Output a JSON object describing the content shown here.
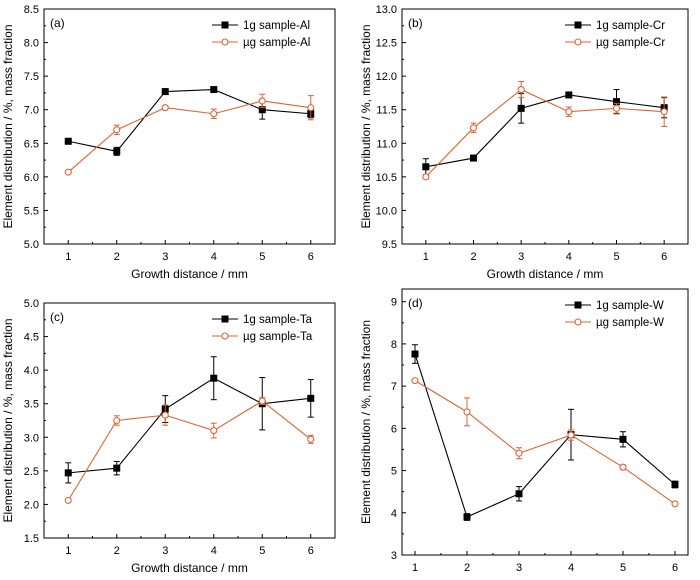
{
  "colors": {
    "series_1g": "#000000",
    "series_ug": "#d9643a"
  },
  "chart_data": [
    {
      "type": "line",
      "panel_label": "(a)",
      "xlabel": "Growth distance / mm",
      "ylabel": "Element distribution / %, mass fraction",
      "x": [
        1,
        2,
        3,
        4,
        5,
        6
      ],
      "xlim": [
        0.5,
        6.5
      ],
      "ylim": [
        5.0,
        8.5
      ],
      "yticks": [
        "5.0",
        "5.5",
        "6.0",
        "6.5",
        "7.0",
        "7.5",
        "8.0",
        "8.5"
      ],
      "legend_position": "top-right",
      "grid": false,
      "series": [
        {
          "name": "1g sample-Al",
          "marker": "filled-square",
          "values": [
            6.53,
            6.38,
            7.27,
            7.3,
            7.0,
            6.94
          ],
          "errors": [
            0.04,
            0.06,
            0.02,
            0.02,
            0.14,
            0.06
          ]
        },
        {
          "name": "µg sample-Al",
          "marker": "open-circle",
          "values": [
            6.07,
            6.7,
            7.03,
            6.94,
            7.13,
            7.03
          ],
          "errors": [
            0.02,
            0.07,
            0.03,
            0.07,
            0.1,
            0.18
          ]
        }
      ]
    },
    {
      "type": "line",
      "panel_label": "(b)",
      "xlabel": "Growth distance / mm",
      "ylabel": "Element distribution / %, mass fraction",
      "x": [
        1,
        2,
        3,
        4,
        5,
        6
      ],
      "xlim": [
        0.5,
        6.5
      ],
      "ylim": [
        9.5,
        13.0
      ],
      "yticks": [
        "9.5",
        "10.0",
        "10.5",
        "11.0",
        "11.5",
        "12.0",
        "12.5",
        "13.0"
      ],
      "legend_position": "top-right",
      "grid": false,
      "series": [
        {
          "name": "1g sample-Cr",
          "marker": "filled-square",
          "values": [
            10.65,
            10.78,
            11.52,
            11.72,
            11.62,
            11.53
          ],
          "errors": [
            0.12,
            0.04,
            0.22,
            0.02,
            0.18,
            0.15
          ]
        },
        {
          "name": "µg sample-Cr",
          "marker": "open-circle",
          "values": [
            10.5,
            11.23,
            11.8,
            11.47,
            11.52,
            11.47
          ],
          "errors": [
            0.03,
            0.07,
            0.12,
            0.07,
            0.07,
            0.22
          ]
        }
      ]
    },
    {
      "type": "line",
      "panel_label": "(c)",
      "xlabel": "Growth distance / mm",
      "ylabel": "Element distribution / %, mass fraction",
      "x": [
        1,
        2,
        3,
        4,
        5,
        6
      ],
      "xlim": [
        0.5,
        6.5
      ],
      "ylim": [
        1.5,
        5.0
      ],
      "yticks": [
        "1.5",
        "2.0",
        "2.5",
        "3.0",
        "3.5",
        "4.0",
        "4.5",
        "5.0"
      ],
      "legend_position": "top-right",
      "grid": false,
      "series": [
        {
          "name": "1g sample-Ta",
          "marker": "filled-square",
          "values": [
            2.47,
            2.54,
            3.42,
            3.88,
            3.5,
            3.58
          ],
          "errors": [
            0.15,
            0.1,
            0.2,
            0.32,
            0.39,
            0.28
          ]
        },
        {
          "name": "µg sample-Ta",
          "marker": "open-circle",
          "values": [
            2.06,
            3.25,
            3.33,
            3.1,
            3.54,
            2.97
          ],
          "errors": [
            0.02,
            0.07,
            0.15,
            0.11,
            0.05,
            0.06
          ]
        }
      ]
    },
    {
      "type": "line",
      "panel_label": "(d)",
      "xlabel": "Growth distance / mm",
      "ylabel": "Element distribution / %, mass fraction",
      "x": [
        1,
        2,
        3,
        4,
        5,
        6
      ],
      "xlim": [
        0.75,
        6.25
      ],
      "ylim": [
        3,
        9.3
      ],
      "yticks": [
        "3",
        "4",
        "5",
        "6",
        "7",
        "8",
        "9"
      ],
      "legend_position": "top-right",
      "grid": false,
      "series": [
        {
          "name": "1g sample-W",
          "marker": "filled-square",
          "values": [
            7.76,
            3.9,
            4.45,
            5.85,
            5.74,
            4.67
          ],
          "errors": [
            0.22,
            0.08,
            0.17,
            0.6,
            0.18,
            0.08
          ]
        },
        {
          "name": "µg sample-W",
          "marker": "open-circle",
          "values": [
            7.13,
            6.39,
            5.41,
            5.84,
            5.08,
            4.21
          ],
          "errors": [
            0.02,
            0.33,
            0.13,
            0.12,
            0.05,
            0.04
          ]
        }
      ]
    }
  ]
}
